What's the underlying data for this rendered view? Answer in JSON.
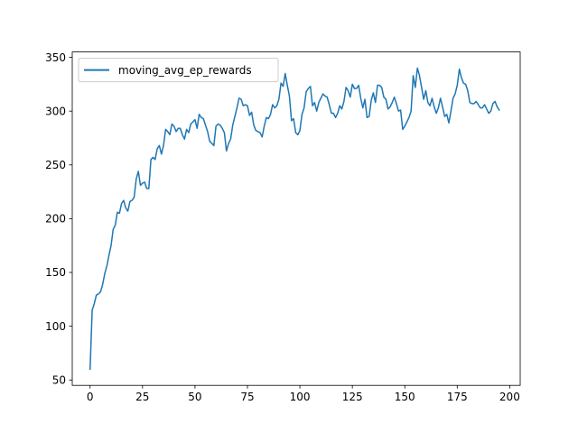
{
  "chart_data": {
    "type": "line",
    "title": "",
    "xlabel": "",
    "ylabel": "",
    "xlim": [
      -8.5,
      205
    ],
    "ylim": [
      45,
      355
    ],
    "xticks": [
      0,
      25,
      50,
      75,
      100,
      125,
      150,
      175,
      200
    ],
    "yticks": [
      50,
      100,
      150,
      200,
      250,
      300,
      350
    ],
    "xtick_labels": [
      "0",
      "25",
      "50",
      "75",
      "100",
      "125",
      "150",
      "175",
      "200"
    ],
    "ytick_labels": [
      "50",
      "100",
      "150",
      "200",
      "250",
      "300",
      "350"
    ],
    "grid": false,
    "legend": "top-left",
    "series": [
      {
        "name": "moving_avg_ep_rewards",
        "color": "#1f77b4",
        "x": [
          0,
          1,
          2,
          3,
          4,
          5,
          6,
          7,
          8,
          9,
          10,
          11,
          12,
          13,
          14,
          15,
          16,
          17,
          18,
          19,
          20,
          21,
          22,
          23,
          24,
          25,
          26,
          27,
          28,
          29,
          30,
          31,
          32,
          33,
          34,
          35,
          36,
          37,
          38,
          39,
          40,
          41,
          42,
          43,
          44,
          45,
          46,
          47,
          48,
          49,
          50,
          51,
          52,
          53,
          54,
          55,
          56,
          57,
          58,
          59,
          60,
          61,
          62,
          63,
          64,
          65,
          66,
          67,
          68,
          69,
          70,
          71,
          72,
          73,
          74,
          75,
          76,
          77,
          78,
          79,
          80,
          81,
          82,
          83,
          84,
          85,
          86,
          87,
          88,
          89,
          90,
          91,
          92,
          93,
          94,
          95,
          96,
          97,
          98,
          99,
          100,
          101,
          102,
          103,
          104,
          105,
          106,
          107,
          108,
          109,
          110,
          111,
          112,
          113,
          114,
          115,
          116,
          117,
          118,
          119,
          120,
          121,
          122,
          123,
          124,
          125,
          126,
          127,
          128,
          129,
          130,
          131,
          132,
          133,
          134,
          135,
          136,
          137,
          138,
          139,
          140,
          141,
          142,
          143,
          144,
          145,
          146,
          147,
          148,
          149,
          150,
          151,
          152,
          153,
          154,
          155,
          156,
          157,
          158,
          159,
          160,
          161,
          162,
          163,
          164,
          165,
          166,
          167,
          168,
          169,
          170,
          171,
          172,
          173,
          174,
          175,
          176,
          177,
          178,
          179,
          180,
          181,
          182,
          183,
          184,
          185,
          186,
          187,
          188,
          189,
          190,
          191,
          192,
          193,
          194,
          195
        ],
        "values": [
          60,
          115,
          121,
          129,
          130,
          132,
          139,
          149,
          156,
          166,
          175,
          190,
          194,
          206,
          205,
          214,
          217,
          210,
          207,
          216,
          217,
          220,
          237,
          244,
          231,
          233,
          234,
          228,
          228,
          255,
          257,
          255,
          265,
          268,
          260,
          268,
          283,
          281,
          278,
          288,
          286,
          281,
          284,
          284,
          278,
          274,
          283,
          280,
          288,
          290,
          292,
          284,
          297,
          294,
          293,
          287,
          281,
          272,
          270,
          268,
          286,
          288,
          287,
          284,
          280,
          263,
          270,
          274,
          287,
          295,
          303,
          312,
          311,
          305,
          306,
          305,
          296,
          299,
          287,
          282,
          281,
          280,
          276,
          286,
          294,
          293,
          297,
          306,
          303,
          305,
          311,
          326,
          323,
          335,
          324,
          314,
          291,
          293,
          280,
          278,
          282,
          297,
          303,
          318,
          321,
          323,
          305,
          308,
          300,
          308,
          312,
          316,
          314,
          313,
          306,
          298,
          298,
          294,
          298,
          305,
          302,
          309,
          322,
          319,
          313,
          325,
          321,
          321,
          324,
          312,
          303,
          311,
          294,
          295,
          310,
          317,
          308,
          324,
          324,
          322,
          313,
          311,
          302,
          304,
          308,
          313,
          307,
          300,
          301,
          283,
          286,
          290,
          294,
          300,
          333,
          322,
          340,
          333,
          322,
          311,
          319,
          308,
          305,
          312,
          304,
          298,
          303,
          312,
          304,
          295,
          297,
          289,
          300,
          312,
          316,
          324,
          339,
          331,
          326,
          325,
          319,
          308,
          307,
          307,
          309,
          306,
          303,
          303,
          306,
          302,
          298,
          300,
          307,
          309,
          304,
          301
        ]
      }
    ]
  }
}
